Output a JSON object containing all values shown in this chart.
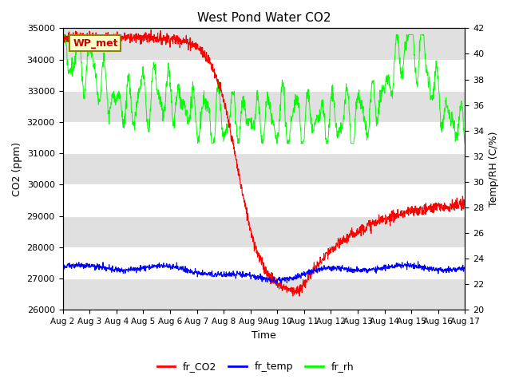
{
  "title": "West Pond Water CO2",
  "xlabel": "Time",
  "ylabel_left": "CO2 (ppm)",
  "ylabel_right": "Temp/RH (C/%)",
  "ylim_left": [
    26000,
    35000
  ],
  "ylim_right": [
    20,
    42
  ],
  "yticks_left": [
    26000,
    27000,
    28000,
    29000,
    30000,
    31000,
    32000,
    33000,
    34000,
    35000
  ],
  "yticks_right": [
    20,
    22,
    24,
    26,
    28,
    30,
    32,
    34,
    36,
    38,
    40,
    42
  ],
  "xtick_labels": [
    "Aug 2",
    "Aug 3",
    "Aug 4",
    "Aug 5",
    "Aug 6",
    "Aug 7",
    "Aug 8",
    "Aug 9",
    "Aug 10",
    "Aug 11",
    "Aug 12",
    "Aug 13",
    "Aug 14",
    "Aug 15",
    "Aug 16",
    "Aug 17"
  ],
  "bg_color": "#ffffff",
  "band_color": "#e0e0e0",
  "legend_label": "WP_met",
  "legend_box_facecolor": "#ffffcc",
  "legend_box_edgecolor": "#cc0000",
  "line_colors": {
    "co2": "#ff0000",
    "temp": "#0000ff",
    "rh": "#00ff00"
  },
  "line_labels": [
    "fr_CO2",
    "fr_temp",
    "fr_rh"
  ],
  "n_days": 15,
  "n_per_day": 96
}
